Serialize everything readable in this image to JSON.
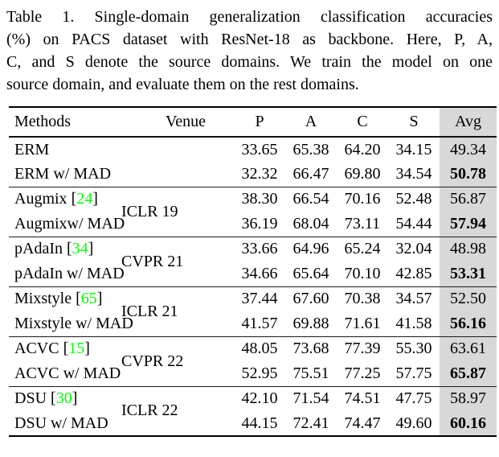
{
  "caption": {
    "lines": [
      "Table 1. Single-domain generalization classification accuracies",
      "(%) on PACS dataset with ResNet-18 as backbone. Here, P, A,",
      "C, and S denote the source domains. We train the model on one",
      "source domain, and evaluate them on the rest domains."
    ]
  },
  "table": {
    "columns": [
      "Methods",
      "Venue",
      "P",
      "A",
      "C",
      "S",
      "Avg"
    ],
    "groups": [
      {
        "venue": "",
        "rows": [
          {
            "method": "ERM",
            "cite": "",
            "values": [
              "33.65",
              "65.38",
              "64.20",
              "34.15"
            ],
            "avg": "49.34",
            "avg_bold": false
          },
          {
            "method": "ERM w/ MAD",
            "cite": "",
            "values": [
              "32.32",
              "66.47",
              "69.80",
              "34.54"
            ],
            "avg": "50.78",
            "avg_bold": true
          }
        ]
      },
      {
        "venue": "ICLR 19",
        "rows": [
          {
            "method": "Augmix",
            "cite": "24",
            "values": [
              "38.30",
              "66.54",
              "70.16",
              "52.48"
            ],
            "avg": "56.87",
            "avg_bold": false
          },
          {
            "method": "Augmixw/ MAD",
            "cite": "",
            "values": [
              "36.19",
              "68.04",
              "73.11",
              "54.44"
            ],
            "avg": "57.94",
            "avg_bold": true
          }
        ]
      },
      {
        "venue": "CVPR 21",
        "rows": [
          {
            "method": "pAdaIn",
            "cite": "34",
            "values": [
              "33.66",
              "64.96",
              "65.24",
              "32.04"
            ],
            "avg": "48.98",
            "avg_bold": false
          },
          {
            "method": "pAdaIn w/ MAD",
            "cite": "",
            "values": [
              "34.66",
              "65.64",
              "70.10",
              "42.85"
            ],
            "avg": "53.31",
            "avg_bold": true
          }
        ]
      },
      {
        "venue": "ICLR 21",
        "rows": [
          {
            "method": "Mixstyle",
            "cite": "65",
            "values": [
              "37.44",
              "67.60",
              "70.38",
              "34.57"
            ],
            "avg": "52.50",
            "avg_bold": false
          },
          {
            "method": "Mixstyle w/ MAD",
            "cite": "",
            "values": [
              "41.57",
              "69.88",
              "71.61",
              "41.58"
            ],
            "avg": "56.16",
            "avg_bold": true
          }
        ]
      },
      {
        "venue": "CVPR 22",
        "rows": [
          {
            "method": "ACVC",
            "cite": "15",
            "values": [
              "48.05",
              "73.68",
              "77.39",
              "55.30"
            ],
            "avg": "63.61",
            "avg_bold": false
          },
          {
            "method": "ACVC w/ MAD",
            "cite": "",
            "values": [
              "52.95",
              "75.51",
              "77.25",
              "57.75"
            ],
            "avg": "65.87",
            "avg_bold": true
          }
        ]
      },
      {
        "venue": "ICLR 22",
        "rows": [
          {
            "method": "DSU",
            "cite": "30",
            "values": [
              "42.10",
              "71.54",
              "74.51",
              "47.75"
            ],
            "avg": "58.97",
            "avg_bold": false
          },
          {
            "method": "DSU w/ MAD",
            "cite": "",
            "values": [
              "44.15",
              "72.41",
              "74.47",
              "49.60"
            ],
            "avg": "60.16",
            "avg_bold": true
          }
        ]
      }
    ]
  },
  "colors": {
    "avg_highlight": "#d8d8d8",
    "citation_green": "#00ff00"
  }
}
